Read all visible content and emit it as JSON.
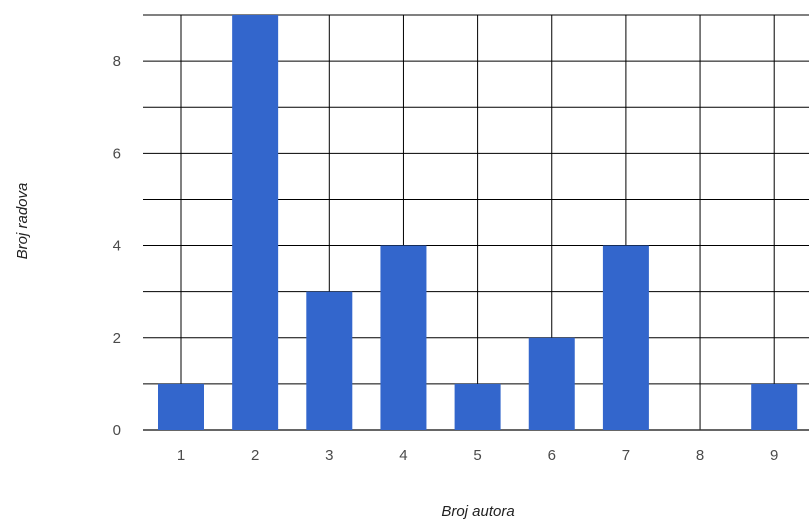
{
  "chart_data": {
    "type": "bar",
    "title": "",
    "xlabel": "Broj autora",
    "ylabel": "Broj radova",
    "categories": [
      "1",
      "2",
      "3",
      "4",
      "5",
      "6",
      "7",
      "8",
      "9"
    ],
    "values": [
      1,
      9,
      3,
      4,
      1,
      2,
      4,
      0,
      1
    ],
    "ylim": [
      0,
      9
    ],
    "yticks": [
      "0",
      "2",
      "4",
      "6",
      "8"
    ],
    "grid": true,
    "legend": "none",
    "colors": {
      "bar": "#3366cc",
      "grid": "#000000",
      "baseline": "#333333",
      "tick_text": "#4a4a4a",
      "axis_title_text": "#222222"
    }
  }
}
